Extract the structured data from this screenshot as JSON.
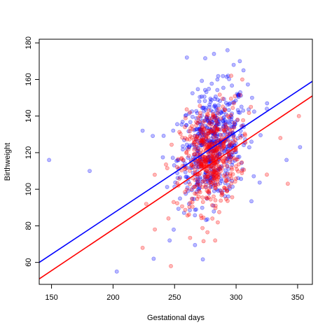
{
  "chart_data": {
    "type": "scatter",
    "title": "",
    "xlabel": "Gestational days",
    "ylabel": "Birthweight",
    "xlim": [
      140,
      362
    ],
    "ylim": [
      48,
      182
    ],
    "x_ticks": [
      150,
      200,
      250,
      300,
      350
    ],
    "y_ticks": [
      60,
      80,
      100,
      120,
      140,
      160,
      180
    ],
    "x_tick_labels": [
      "150",
      "200",
      "250",
      "300",
      "350"
    ],
    "y_tick_labels": [
      "60",
      "80",
      "100",
      "120",
      "140",
      "160",
      "180"
    ],
    "grid": false,
    "legend": "none",
    "series": [
      {
        "color": "#0000ff",
        "marker": "open-circle",
        "fit_line": [
          [
            140,
            60
          ],
          [
            362,
            159
          ]
        ],
        "approx_count": 560,
        "center": [
          281,
          124
        ],
        "spread": [
          14,
          15
        ],
        "outliers": [
          [
            148,
            116
          ],
          [
            181,
            110
          ],
          [
            203,
            55
          ],
          [
            224,
            132
          ],
          [
            260,
            172
          ],
          [
            282,
            174
          ],
          [
            293,
            176
          ],
          [
            303,
            170
          ],
          [
            306,
            165
          ],
          [
            325,
            144
          ],
          [
            341,
            116
          ],
          [
            352,
            123
          ],
          [
            233,
            62
          ],
          [
            246,
            72
          ],
          [
            298,
            168
          ],
          [
            313,
            150
          ]
        ]
      },
      {
        "color": "#ff0000",
        "marker": "open-circle",
        "fit_line": [
          [
            140,
            51
          ],
          [
            362,
            151
          ]
        ],
        "approx_count": 520,
        "center": [
          279,
          117
        ],
        "spread": [
          12,
          14
        ],
        "outliers": [
          [
            224,
            68
          ],
          [
            234,
            78
          ],
          [
            247,
            58
          ],
          [
            227,
            92
          ],
          [
            305,
            160
          ],
          [
            325,
            108
          ],
          [
            351,
            140
          ],
          [
            342,
            103
          ],
          [
            283,
            72
          ],
          [
            296,
            162
          ],
          [
            336,
            128
          ],
          [
            312,
            145
          ]
        ]
      }
    ]
  }
}
